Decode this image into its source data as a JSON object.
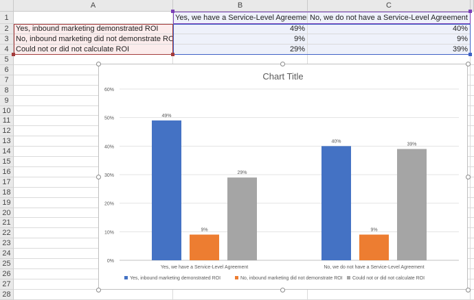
{
  "columns": [
    "A",
    "B",
    "C"
  ],
  "rows": [
    "1",
    "2",
    "3",
    "4",
    "5",
    "6",
    "7",
    "8",
    "9",
    "10",
    "11",
    "12",
    "13",
    "14",
    "15",
    "16",
    "17",
    "18",
    "19",
    "20",
    "21",
    "22",
    "23",
    "24",
    "25",
    "26",
    "27",
    "28"
  ],
  "sheet": {
    "B1": "Yes, we have a Service-Level Agreement",
    "C1": "No, we do not have a Service-Level Agreement",
    "A2": "Yes, inbound marketing demonstrated ROI",
    "A3": "No, inbound marketing did not demonstrate ROI",
    "A4": "Could not or did not calculate ROI",
    "B2": "49%",
    "C2": "40%",
    "B3": "9%",
    "C3": "9%",
    "B4": "29%",
    "C4": "39%"
  },
  "chart_data": {
    "type": "bar",
    "title": "Chart Title",
    "categories": [
      "Yes, we have a Service-Level Agreement",
      "No, we do not have a Service-Level Agreement"
    ],
    "series": [
      {
        "name": "Yes, inbound marketing demonstrated ROI",
        "values": [
          49,
          40
        ],
        "color": "#4472c4"
      },
      {
        "name": "No, inbound marketing did not demonstrate ROI",
        "values": [
          9,
          9
        ],
        "color": "#ed7d31"
      },
      {
        "name": "Could not or did not calculate ROI",
        "values": [
          29,
          39
        ],
        "color": "#a5a5a5"
      }
    ],
    "ylim": [
      0,
      60
    ],
    "yticks": [
      "0%",
      "10%",
      "20%",
      "30%",
      "40%",
      "50%",
      "60%"
    ],
    "value_suffix": "%",
    "grid": true,
    "legend": "bottom"
  }
}
